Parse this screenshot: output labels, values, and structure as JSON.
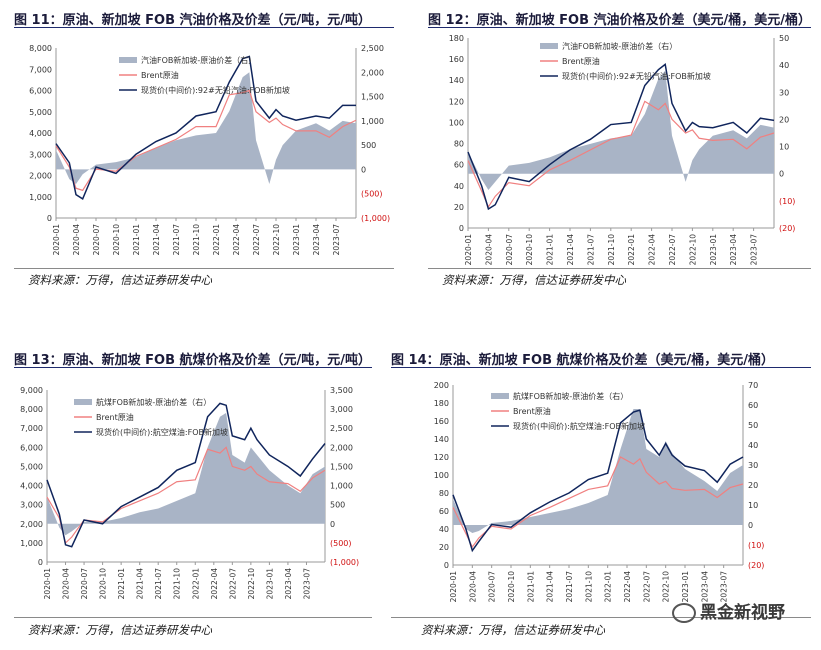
{
  "source_text": "资料来源：万得，信达证券研发中心",
  "watermark": "黑金新视野",
  "colors": {
    "spread": "#a9b4c6",
    "brent": "#f08080",
    "spot": "#10255c",
    "right_axis_neg": "#d01010"
  },
  "x_tick_labels": [
    "2020-01",
    "2020-04",
    "2020-07",
    "2020-10",
    "2021-01",
    "2021-04",
    "2021-07",
    "2021-10",
    "2022-01",
    "2022-04",
    "2022-07",
    "2022-10",
    "2023-01",
    "2023-04",
    "2023-07"
  ],
  "panels": [
    {
      "title": "图 11：原油、新加坡 FOB 汽油价格及价差（元/吨，元/吨）",
      "chart_data": {
        "type": "line",
        "x_range": [
          "2020-01",
          "2023-10"
        ],
        "left_axis": {
          "min": 0,
          "max": 8000,
          "ticks": [
            "0",
            "1,000",
            "2,000",
            "3,000",
            "4,000",
            "5,000",
            "6,000",
            "7,000",
            "8,000"
          ]
        },
        "right_axis": {
          "min": -1000,
          "max": 2500,
          "ticks": [
            "(1,000)",
            "(500)",
            "0",
            "500",
            "1,000",
            "1,500",
            "2,000",
            "2,500"
          ]
        },
        "series": [
          {
            "name": "汽油FOB新加坡-原油价差（右）",
            "type": "area",
            "axis": "right",
            "x": [
              "2020-01",
              "2020-03",
              "2020-04",
              "2020-05",
              "2020-07",
              "2020-10",
              "2021-01",
              "2021-04",
              "2021-07",
              "2021-10",
              "2022-01",
              "2022-03",
              "2022-05",
              "2022-06",
              "2022-07",
              "2022-09",
              "2022-10",
              "2022-11",
              "2023-01",
              "2023-04",
              "2023-06",
              "2023-08",
              "2023-10"
            ],
            "y": [
              400,
              -200,
              -300,
              -100,
              100,
              150,
              250,
              450,
              600,
              700,
              750,
              1200,
              1900,
              2000,
              600,
              -300,
              200,
              500,
              800,
              950,
              800,
              1000,
              950
            ]
          },
          {
            "name": "Brent原油",
            "type": "line",
            "axis": "left",
            "x": [
              "2020-01",
              "2020-03",
              "2020-04",
              "2020-05",
              "2020-07",
              "2020-10",
              "2021-01",
              "2021-04",
              "2021-07",
              "2021-10",
              "2022-01",
              "2022-03",
              "2022-05",
              "2022-06",
              "2022-07",
              "2022-09",
              "2022-10",
              "2022-11",
              "2023-01",
              "2023-04",
              "2023-06",
              "2023-08",
              "2023-10"
            ],
            "y": [
              3400,
              2400,
              1400,
              1300,
              2300,
              2200,
              2900,
              3300,
              3700,
              4300,
              4300,
              5800,
              5900,
              6000,
              5000,
              4500,
              4700,
              4400,
              4100,
              4100,
              3800,
              4300,
              4600
            ]
          },
          {
            "name": "现货价(中间价):92#无铅汽油:FOB新加坡",
            "type": "line",
            "axis": "left",
            "x": [
              "2020-01",
              "2020-03",
              "2020-04",
              "2020-05",
              "2020-07",
              "2020-10",
              "2021-01",
              "2021-04",
              "2021-07",
              "2021-10",
              "2022-01",
              "2022-03",
              "2022-05",
              "2022-06",
              "2022-07",
              "2022-09",
              "2022-10",
              "2022-11",
              "2023-01",
              "2023-04",
              "2023-06",
              "2023-08",
              "2023-10"
            ],
            "y": [
              3500,
              2600,
              1100,
              900,
              2400,
              2100,
              3000,
              3600,
              4000,
              4800,
              5000,
              6400,
              7500,
              7600,
              5500,
              4700,
              5100,
              4800,
              4600,
              4800,
              4700,
              5300,
              5300
            ]
          }
        ]
      }
    },
    {
      "title": "图 12：原油、新加坡 FOB 汽油价格及价差（美元/桶，美元/桶）",
      "chart_data": {
        "type": "line",
        "x_range": [
          "2020-01",
          "2023-10"
        ],
        "left_axis": {
          "min": 0,
          "max": 180,
          "ticks": [
            "0",
            "20",
            "40",
            "60",
            "80",
            "100",
            "120",
            "140",
            "160",
            "180"
          ]
        },
        "right_axis": {
          "min": -20,
          "max": 50,
          "ticks": [
            "(20)",
            "(10)",
            "0",
            "10",
            "20",
            "30",
            "40",
            "50"
          ]
        },
        "series": [
          {
            "name": "汽油FOB新加坡-原油价差（右）",
            "type": "area",
            "axis": "right",
            "x": [
              "2020-01",
              "2020-03",
              "2020-04",
              "2020-05",
              "2020-07",
              "2020-10",
              "2021-01",
              "2021-04",
              "2021-07",
              "2021-10",
              "2022-01",
              "2022-03",
              "2022-05",
              "2022-06",
              "2022-07",
              "2022-09",
              "2022-10",
              "2022-11",
              "2023-01",
              "2023-04",
              "2023-06",
              "2023-08",
              "2023-10"
            ],
            "y": [
              8,
              -2,
              -6,
              -3,
              3,
              4,
              6,
              9,
              11,
              13,
              14,
              22,
              35,
              38,
              14,
              -3,
              5,
              9,
              14,
              16,
              13,
              18,
              17
            ]
          },
          {
            "name": "Brent原油",
            "type": "line",
            "axis": "left",
            "x": [
              "2020-01",
              "2020-03",
              "2020-04",
              "2020-05",
              "2020-07",
              "2020-10",
              "2021-01",
              "2021-04",
              "2021-07",
              "2021-10",
              "2022-01",
              "2022-03",
              "2022-05",
              "2022-06",
              "2022-07",
              "2022-09",
              "2022-10",
              "2022-11",
              "2023-01",
              "2023-04",
              "2023-06",
              "2023-08",
              "2023-10"
            ],
            "y": [
              64,
              35,
              20,
              30,
              43,
              40,
              55,
              64,
              74,
              84,
              88,
              120,
              112,
              118,
              103,
              90,
              93,
              85,
              83,
              84,
              75,
              86,
              90
            ]
          },
          {
            "name": "现货价(中间价):92#无铅汽油:FOB新加坡",
            "type": "line",
            "axis": "left",
            "x": [
              "2020-01",
              "2020-03",
              "2020-04",
              "2020-05",
              "2020-07",
              "2020-10",
              "2021-01",
              "2021-04",
              "2021-07",
              "2021-10",
              "2022-01",
              "2022-03",
              "2022-05",
              "2022-06",
              "2022-07",
              "2022-09",
              "2022-10",
              "2022-11",
              "2023-01",
              "2023-04",
              "2023-06",
              "2023-08",
              "2023-10"
            ],
            "y": [
              72,
              40,
              18,
              22,
              48,
              44,
              60,
              74,
              84,
              98,
              100,
              135,
              150,
              155,
              118,
              92,
              100,
              96,
              95,
              100,
              90,
              104,
              102
            ]
          }
        ]
      }
    },
    {
      "title": "图 13：原油、新加坡 FOB 航煤价格及价差（元/吨，元/吨）",
      "chart_data": {
        "type": "line",
        "x_range": [
          "2020-01",
          "2023-10"
        ],
        "left_axis": {
          "min": 0,
          "max": 9000,
          "ticks": [
            "0",
            "1,000",
            "2,000",
            "3,000",
            "4,000",
            "5,000",
            "6,000",
            "7,000",
            "8,000",
            "9,000"
          ]
        },
        "right_axis": {
          "min": -1000,
          "max": 3500,
          "ticks": [
            "(1,000)",
            "(500)",
            "0",
            "500",
            "1,000",
            "1,500",
            "2,000",
            "2,500",
            "3,000",
            "3,500"
          ]
        },
        "series": [
          {
            "name": "航煤FOB新加坡-原油价差（右）",
            "type": "area",
            "axis": "right",
            "x": [
              "2020-01",
              "2020-03",
              "2020-04",
              "2020-05",
              "2020-07",
              "2020-10",
              "2021-01",
              "2021-04",
              "2021-07",
              "2021-10",
              "2022-01",
              "2022-03",
              "2022-05",
              "2022-06",
              "2022-07",
              "2022-09",
              "2022-10",
              "2022-11",
              "2023-01",
              "2023-04",
              "2023-06",
              "2023-08",
              "2023-10"
            ],
            "y": [
              700,
              -100,
              -300,
              -200,
              50,
              50,
              150,
              300,
              400,
              600,
              800,
              2000,
              2800,
              2900,
              1800,
              1600,
              2000,
              1800,
              1400,
              1000,
              800,
              1300,
              1500
            ]
          },
          {
            "name": "Brent原油",
            "type": "line",
            "axis": "left",
            "x": [
              "2020-01",
              "2020-03",
              "2020-04",
              "2020-05",
              "2020-07",
              "2020-10",
              "2021-01",
              "2021-04",
              "2021-07",
              "2021-10",
              "2022-01",
              "2022-03",
              "2022-05",
              "2022-06",
              "2022-07",
              "2022-09",
              "2022-10",
              "2022-11",
              "2023-01",
              "2023-04",
              "2023-06",
              "2023-08",
              "2023-10"
            ],
            "y": [
              3400,
              2300,
              1000,
              1300,
              2200,
              2100,
              2800,
              3200,
              3600,
              4200,
              4300,
              5900,
              5700,
              6000,
              5000,
              4800,
              5000,
              4600,
              4200,
              4100,
              3700,
              4400,
              4800
            ]
          },
          {
            "name": "现货价(中间价):航空煤油:FOB新加坡",
            "type": "line",
            "axis": "left",
            "x": [
              "2020-01",
              "2020-03",
              "2020-04",
              "2020-05",
              "2020-07",
              "2020-10",
              "2021-01",
              "2021-04",
              "2021-07",
              "2021-10",
              "2022-01",
              "2022-03",
              "2022-05",
              "2022-06",
              "2022-07",
              "2022-09",
              "2022-10",
              "2022-11",
              "2023-01",
              "2023-04",
              "2023-06",
              "2023-08",
              "2023-10"
            ],
            "y": [
              4300,
              2500,
              900,
              800,
              2200,
              2000,
              2900,
              3400,
              3900,
              4800,
              5200,
              7600,
              8300,
              8200,
              6600,
              6400,
              7000,
              6400,
              5600,
              5000,
              4500,
              5400,
              6200
            ]
          }
        ]
      }
    },
    {
      "title": "图 14：原油、新加坡 FOB 航煤价格及价差（美元/桶，美元/桶）",
      "chart_data": {
        "type": "line",
        "x_range": [
          "2020-01",
          "2023-10"
        ],
        "left_axis": {
          "min": 0,
          "max": 200,
          "ticks": [
            "0",
            "20",
            "40",
            "60",
            "80",
            "100",
            "120",
            "140",
            "160",
            "180",
            "200"
          ]
        },
        "right_axis": {
          "min": -20,
          "max": 70,
          "ticks": [
            "(20)",
            "(10)",
            "0",
            "10",
            "20",
            "30",
            "40",
            "50",
            "60",
            "70"
          ]
        },
        "series": [
          {
            "name": "航煤FOB新加坡-原油价差（右）",
            "type": "area",
            "axis": "right",
            "x": [
              "2020-01",
              "2020-03",
              "2020-04",
              "2020-05",
              "2020-07",
              "2020-10",
              "2021-01",
              "2021-04",
              "2021-07",
              "2021-10",
              "2022-01",
              "2022-03",
              "2022-05",
              "2022-06",
              "2022-07",
              "2022-09",
              "2022-10",
              "2022-11",
              "2023-01",
              "2023-04",
              "2023-06",
              "2023-08",
              "2023-10"
            ],
            "y": [
              13,
              -2,
              -4,
              -3,
              1,
              2,
              4,
              6,
              8,
              11,
              15,
              38,
              58,
              58,
              38,
              34,
              42,
              36,
              28,
              22,
              17,
              26,
              30
            ]
          },
          {
            "name": "Brent原油",
            "type": "line",
            "axis": "left",
            "x": [
              "2020-01",
              "2020-03",
              "2020-04",
              "2020-05",
              "2020-07",
              "2020-10",
              "2021-01",
              "2021-04",
              "2021-07",
              "2021-10",
              "2022-01",
              "2022-03",
              "2022-05",
              "2022-06",
              "2022-07",
              "2022-09",
              "2022-10",
              "2022-11",
              "2023-01",
              "2023-04",
              "2023-06",
              "2023-08",
              "2023-10"
            ],
            "y": [
              64,
              35,
              20,
              30,
              43,
              40,
              55,
              64,
              74,
              84,
              88,
              120,
              112,
              118,
              103,
              90,
              93,
              85,
              83,
              84,
              75,
              86,
              90
            ]
          },
          {
            "name": "现货价(中间价):航空煤油:FOB新加坡",
            "type": "line",
            "axis": "left",
            "x": [
              "2020-01",
              "2020-03",
              "2020-04",
              "2020-05",
              "2020-07",
              "2020-10",
              "2021-01",
              "2021-04",
              "2021-07",
              "2021-10",
              "2022-01",
              "2022-03",
              "2022-05",
              "2022-06",
              "2022-07",
              "2022-09",
              "2022-10",
              "2022-11",
              "2023-01",
              "2023-04",
              "2023-06",
              "2023-08",
              "2023-10"
            ],
            "y": [
              78,
              40,
              16,
              26,
              45,
              42,
              58,
              70,
              80,
              95,
              102,
              158,
              170,
              172,
              140,
              122,
              135,
              122,
              110,
              105,
              92,
              112,
              120
            ]
          }
        ]
      }
    }
  ]
}
